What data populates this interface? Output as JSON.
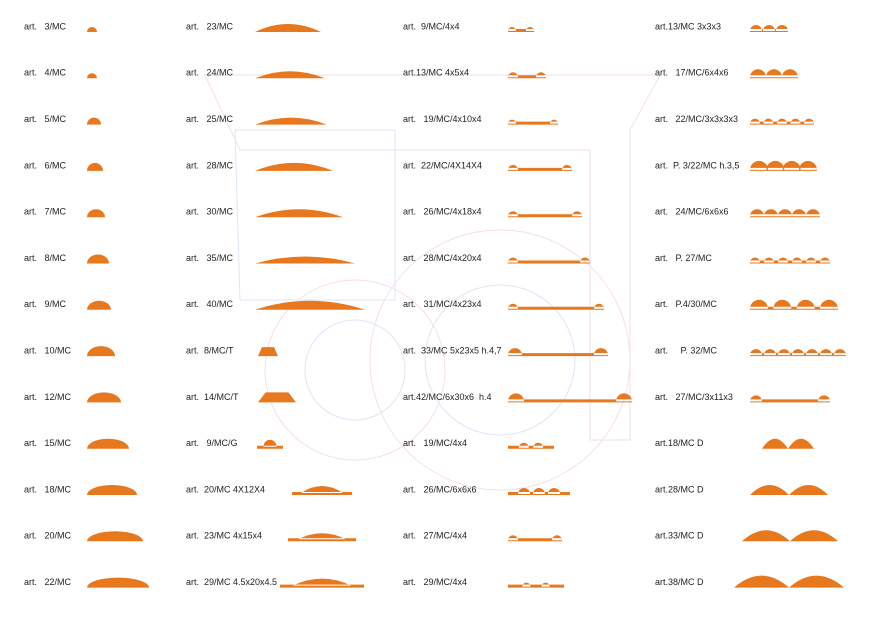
{
  "columns": [
    {
      "items": [
        "art.   3/MC",
        "art.   4/MC",
        "art.   5/MC",
        "art.   6/MC",
        "art.   7/MC",
        "art.   8/MC",
        "art.   9/MC",
        "art.   10/MC",
        "art.   12/MC",
        "art.   15/MC",
        "art.   18/MC",
        "art.   20/MC",
        "art.   22/MC"
      ]
    },
    {
      "items": [
        "art.   23/MC",
        "art.   24/MC",
        "art.   25/MC",
        "art.   28/MC",
        "art.   30/MC",
        "art.   35/MC",
        "art.   40/MC",
        "art.  8/MC/T",
        "art.  14/MC/T",
        "art.   9/MC/G",
        "art.  20/MC 4X12X4",
        "art.  23/MC 4x15x4",
        "art.  29/MC 4.5x20x4.5"
      ]
    },
    {
      "items": [
        "art.  9/MC/4x4",
        "art.13/MC 4x5x4",
        "art.   19/MC/4x10x4",
        "art.  22/MC/4X14X4",
        "art.   26/MC/4x18x4",
        "art.   28/MC/4x20x4",
        "art.   31/MC/4x23x4",
        "art.  33/MC 5x23x5 h.4,7",
        "art.42/MC/6x30x6  h.4",
        "art.   19/MC/4x4",
        "art.   26/MC/6x6x6",
        "art.   27/MC/4x4",
        "art.   29/MC/4x4"
      ]
    },
    {
      "items": [
        "art.13/MC 3x3x3",
        "art.   17/MC/6x4x6",
        "art.   22/MC/3x3x3x3",
        "art.  P. 3/22/MC h.3,5",
        "art.   24/MC/6x6x6",
        "art.   P. 27/MC",
        "art.   P.4/30/MC",
        "art.     P. 32/MC",
        "art.   27/MC/3x11x3",
        "art.18/MC D",
        "art.28/MC D",
        "art.33/MC D",
        "art.38/MC D"
      ]
    }
  ]
}
